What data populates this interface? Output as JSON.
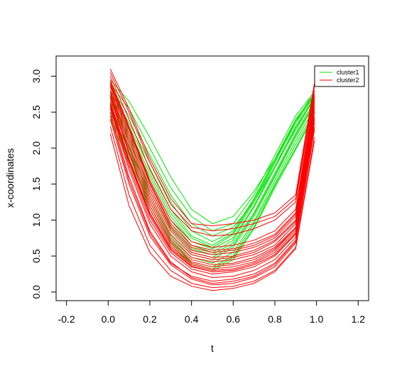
{
  "chart_data": {
    "type": "line",
    "xlabel": "t",
    "ylabel": "x-coordinates",
    "xlim": [
      -0.25,
      1.25
    ],
    "ylim": [
      -0.12,
      3.28
    ],
    "x_ticks": [
      "-0.2",
      "0.0",
      "0.2",
      "0.4",
      "0.6",
      "0.8",
      "1.0",
      "1.2"
    ],
    "x_tick_values": [
      -0.2,
      0.0,
      0.2,
      0.4,
      0.6,
      0.8,
      1.0,
      1.2
    ],
    "y_ticks": [
      "0.0",
      "0.5",
      "1.0",
      "1.5",
      "2.0",
      "2.5",
      "3.0"
    ],
    "y_tick_values": [
      0.0,
      0.5,
      1.0,
      1.5,
      2.0,
      2.5,
      3.0
    ],
    "grid": false,
    "legend_position": "top-right",
    "legend": [
      {
        "label": "cluster1",
        "color": "#00e600"
      },
      {
        "label": "cluster2",
        "color": "#ff0000"
      }
    ],
    "series_x": [
      0.01,
      0.1,
      0.2,
      0.3,
      0.4,
      0.5,
      0.6,
      0.7,
      0.8,
      0.9,
      0.99
    ],
    "series": [
      {
        "cluster": "cluster1",
        "values": [
          2.95,
          2.65,
          2.15,
          1.6,
          1.15,
          0.95,
          1.05,
          1.4,
          1.85,
          2.35,
          2.8
        ]
      },
      {
        "cluster": "cluster1",
        "values": [
          2.8,
          2.35,
          1.8,
          1.25,
          0.85,
          0.7,
          0.85,
          1.3,
          1.85,
          2.4,
          2.75
        ]
      },
      {
        "cluster": "cluster1",
        "values": [
          2.7,
          2.2,
          1.6,
          1.05,
          0.7,
          0.6,
          0.75,
          1.2,
          1.75,
          2.3,
          2.7
        ]
      },
      {
        "cluster": "cluster1",
        "values": [
          2.65,
          2.1,
          1.45,
          0.9,
          0.6,
          0.52,
          0.68,
          1.1,
          1.65,
          2.2,
          2.65
        ]
      },
      {
        "cluster": "cluster1",
        "values": [
          2.6,
          2.0,
          1.35,
          0.8,
          0.52,
          0.45,
          0.62,
          1.05,
          1.6,
          2.15,
          2.6
        ]
      },
      {
        "cluster": "cluster1",
        "values": [
          2.85,
          2.45,
          1.9,
          1.35,
          0.95,
          0.78,
          0.9,
          1.25,
          1.75,
          2.25,
          2.7
        ]
      },
      {
        "cluster": "cluster1",
        "values": [
          2.55,
          1.95,
          1.3,
          0.78,
          0.48,
          0.4,
          0.55,
          0.98,
          1.55,
          2.1,
          2.55
        ]
      },
      {
        "cluster": "cluster1",
        "values": [
          2.75,
          2.25,
          1.65,
          1.1,
          0.75,
          0.62,
          0.8,
          1.25,
          1.8,
          2.35,
          2.72
        ]
      },
      {
        "cluster": "cluster1",
        "values": [
          2.5,
          1.9,
          1.25,
          0.72,
          0.42,
          0.35,
          0.5,
          0.95,
          1.5,
          2.05,
          2.5
        ]
      },
      {
        "cluster": "cluster1",
        "values": [
          2.9,
          2.55,
          2.0,
          1.45,
          1.05,
          0.85,
          0.95,
          1.35,
          1.9,
          2.45,
          2.78
        ]
      },
      {
        "cluster": "cluster1",
        "values": [
          2.45,
          1.85,
          1.2,
          0.7,
          0.4,
          0.32,
          0.48,
          0.9,
          1.48,
          2.0,
          2.48
        ]
      },
      {
        "cluster": "cluster1",
        "values": [
          2.68,
          2.15,
          1.55,
          1.0,
          0.65,
          0.55,
          0.72,
          1.18,
          1.72,
          2.28,
          2.68
        ]
      },
      {
        "cluster": "cluster1",
        "values": [
          2.4,
          1.8,
          1.15,
          0.65,
          0.38,
          0.3,
          0.45,
          0.88,
          1.45,
          1.98,
          2.45
        ]
      },
      {
        "cluster": "cluster1",
        "values": [
          2.78,
          2.3,
          1.72,
          1.15,
          0.78,
          0.65,
          0.82,
          1.28,
          1.82,
          2.38,
          2.74
        ]
      },
      {
        "cluster": "cluster1",
        "values": [
          2.58,
          2.02,
          1.4,
          0.85,
          0.55,
          0.48,
          0.65,
          1.08,
          1.62,
          2.18,
          2.62
        ]
      },
      {
        "cluster": "cluster2",
        "values": [
          3.1,
          2.55,
          1.85,
          1.3,
          0.95,
          0.92,
          0.95,
          1.0,
          1.1,
          1.35,
          2.9
        ]
      },
      {
        "cluster": "cluster2",
        "values": [
          2.95,
          2.3,
          1.55,
          1.0,
          0.7,
          0.62,
          0.65,
          0.72,
          0.85,
          1.15,
          2.75
        ]
      },
      {
        "cluster": "cluster2",
        "values": [
          2.85,
          2.15,
          1.4,
          0.85,
          0.55,
          0.48,
          0.5,
          0.58,
          0.72,
          1.0,
          2.65
        ]
      },
      {
        "cluster": "cluster2",
        "values": [
          2.75,
          2.0,
          1.25,
          0.72,
          0.45,
          0.38,
          0.4,
          0.48,
          0.62,
          0.9,
          2.55
        ]
      },
      {
        "cluster": "cluster2",
        "values": [
          2.6,
          1.8,
          1.05,
          0.58,
          0.35,
          0.28,
          0.3,
          0.38,
          0.52,
          0.82,
          2.4
        ]
      },
      {
        "cluster": "cluster2",
        "values": [
          2.5,
          1.6,
          0.85,
          0.42,
          0.2,
          0.12,
          0.15,
          0.22,
          0.38,
          0.7,
          2.3
        ]
      },
      {
        "cluster": "cluster2",
        "values": [
          2.2,
          1.2,
          0.55,
          0.22,
          0.08,
          0.02,
          0.05,
          0.12,
          0.28,
          0.6,
          2.1
        ]
      },
      {
        "cluster": "cluster2",
        "values": [
          3.0,
          2.4,
          1.7,
          1.15,
          0.85,
          0.78,
          0.8,
          0.88,
          1.0,
          1.25,
          2.8
        ]
      },
      {
        "cluster": "cluster2",
        "values": [
          2.9,
          2.25,
          1.5,
          0.92,
          0.62,
          0.55,
          0.58,
          0.65,
          0.78,
          1.08,
          2.7
        ]
      },
      {
        "cluster": "cluster2",
        "values": [
          2.7,
          1.92,
          1.15,
          0.65,
          0.4,
          0.32,
          0.35,
          0.42,
          0.58,
          0.88,
          2.5
        ]
      },
      {
        "cluster": "cluster2",
        "values": [
          2.55,
          1.7,
          0.95,
          0.5,
          0.28,
          0.2,
          0.22,
          0.3,
          0.45,
          0.76,
          2.35
        ]
      },
      {
        "cluster": "cluster2",
        "values": [
          2.8,
          2.1,
          1.35,
          0.8,
          0.52,
          0.45,
          0.48,
          0.55,
          0.7,
          0.98,
          2.62
        ]
      },
      {
        "cluster": "cluster2",
        "values": [
          2.65,
          1.85,
          1.1,
          0.62,
          0.38,
          0.3,
          0.32,
          0.4,
          0.55,
          0.85,
          2.45
        ]
      },
      {
        "cluster": "cluster2",
        "values": [
          2.4,
          1.5,
          0.78,
          0.38,
          0.18,
          0.1,
          0.12,
          0.2,
          0.35,
          0.68,
          2.25
        ]
      },
      {
        "cluster": "cluster2",
        "values": [
          3.05,
          2.5,
          1.8,
          1.22,
          0.9,
          0.85,
          0.88,
          0.95,
          1.05,
          1.3,
          2.85
        ]
      },
      {
        "cluster": "cluster2",
        "values": [
          2.88,
          2.2,
          1.45,
          0.88,
          0.58,
          0.52,
          0.55,
          0.62,
          0.75,
          1.05,
          2.68
        ]
      },
      {
        "cluster": "cluster2",
        "values": [
          2.72,
          1.95,
          1.2,
          0.68,
          0.42,
          0.35,
          0.38,
          0.45,
          0.6,
          0.88,
          2.52
        ]
      },
      {
        "cluster": "cluster2",
        "values": [
          2.58,
          1.75,
          1.0,
          0.55,
          0.32,
          0.25,
          0.28,
          0.35,
          0.5,
          0.8,
          2.38
        ]
      },
      {
        "cluster": "cluster2",
        "values": [
          2.45,
          1.55,
          0.82,
          0.4,
          0.22,
          0.15,
          0.18,
          0.25,
          0.4,
          0.72,
          2.28
        ]
      },
      {
        "cluster": "cluster2",
        "values": [
          2.92,
          2.28,
          1.52,
          0.95,
          0.65,
          0.58,
          0.6,
          0.68,
          0.8,
          1.1,
          2.72
        ]
      },
      {
        "cluster": "cluster2",
        "values": [
          2.78,
          2.05,
          1.3,
          0.75,
          0.48,
          0.42,
          0.45,
          0.52,
          0.65,
          0.95,
          2.58
        ]
      },
      {
        "cluster": "cluster2",
        "values": [
          2.62,
          1.82,
          1.08,
          0.6,
          0.36,
          0.28,
          0.3,
          0.38,
          0.52,
          0.82,
          2.42
        ]
      },
      {
        "cluster": "cluster2",
        "values": [
          2.3,
          1.35,
          0.65,
          0.3,
          0.12,
          0.06,
          0.08,
          0.15,
          0.3,
          0.62,
          2.15
        ]
      }
    ]
  }
}
